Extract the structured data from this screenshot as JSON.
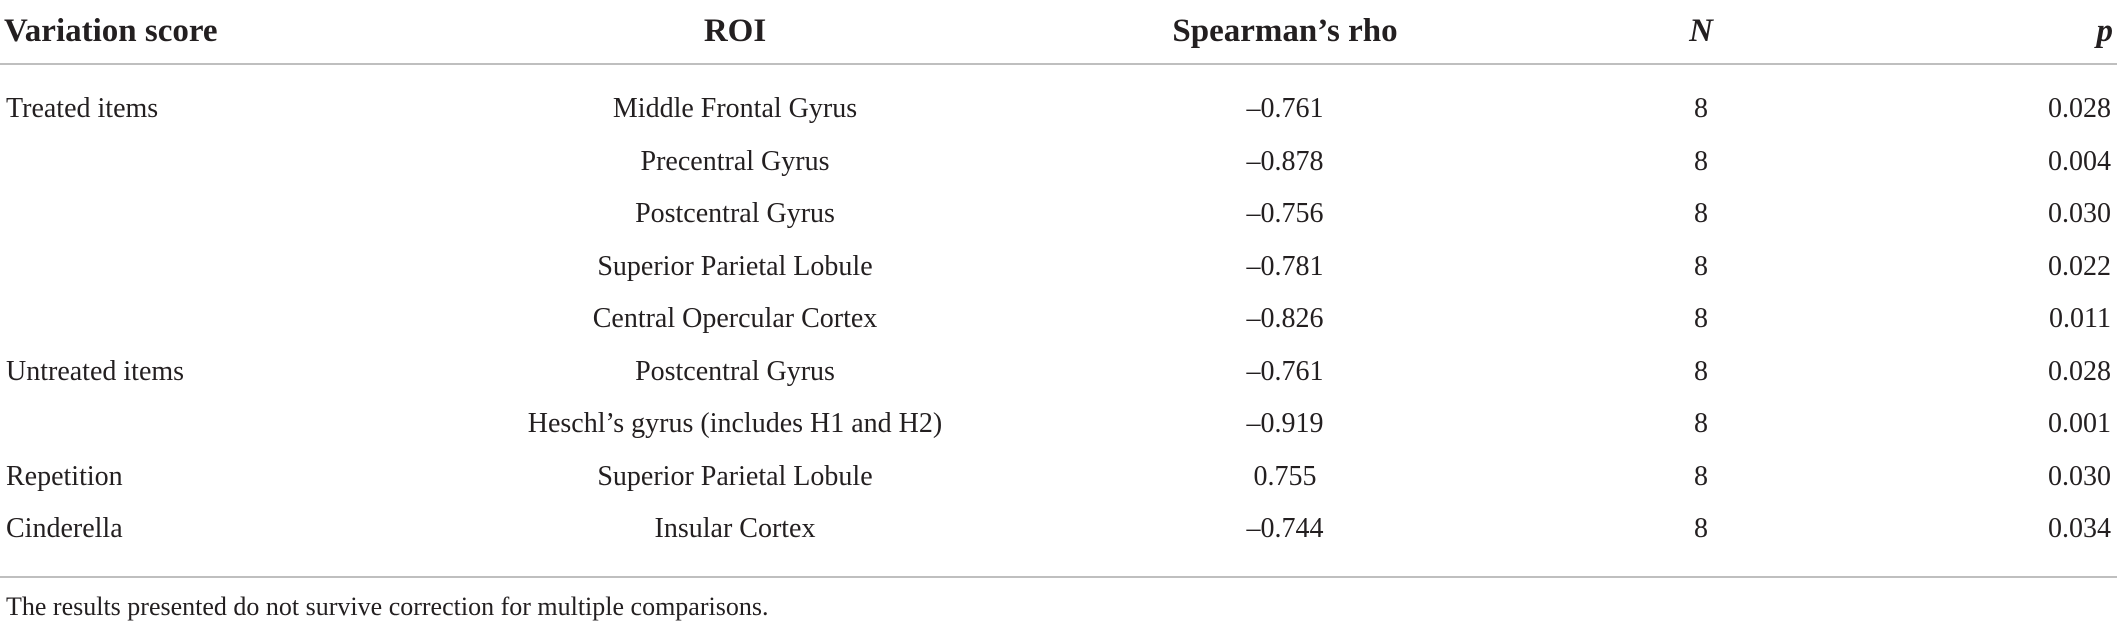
{
  "table": {
    "headers": {
      "variation_score": "Variation score",
      "roi": "ROI",
      "rho": "Spearman’s rho",
      "n": "N",
      "p": "p"
    },
    "rows": [
      {
        "score": "Treated items",
        "roi": "Middle Frontal Gyrus",
        "rho": "–0.761",
        "n": "8",
        "p": "0.028"
      },
      {
        "score": "",
        "roi": "Precentral Gyrus",
        "rho": "–0.878",
        "n": "8",
        "p": "0.004"
      },
      {
        "score": "",
        "roi": "Postcentral Gyrus",
        "rho": "–0.756",
        "n": "8",
        "p": "0.030"
      },
      {
        "score": "",
        "roi": "Superior Parietal Lobule",
        "rho": "–0.781",
        "n": "8",
        "p": "0.022"
      },
      {
        "score": "",
        "roi": "Central Opercular Cortex",
        "rho": "–0.826",
        "n": "8",
        "p": "0.011"
      },
      {
        "score": "Untreated items",
        "roi": "Postcentral Gyrus",
        "rho": "–0.761",
        "n": "8",
        "p": "0.028"
      },
      {
        "score": "",
        "roi": "Heschl’s gyrus (includes H1 and H2)",
        "rho": "–0.919",
        "n": "8",
        "p": "0.001"
      },
      {
        "score": "Repetition",
        "roi": "Superior Parietal Lobule",
        "rho": "0.755",
        "n": "8",
        "p": "0.030"
      },
      {
        "score": "Cinderella",
        "roi": "Insular Cortex",
        "rho": "–0.744",
        "n": "8",
        "p": "0.034"
      }
    ],
    "footnote": "The results presented do not survive correction for multiple comparisons."
  }
}
